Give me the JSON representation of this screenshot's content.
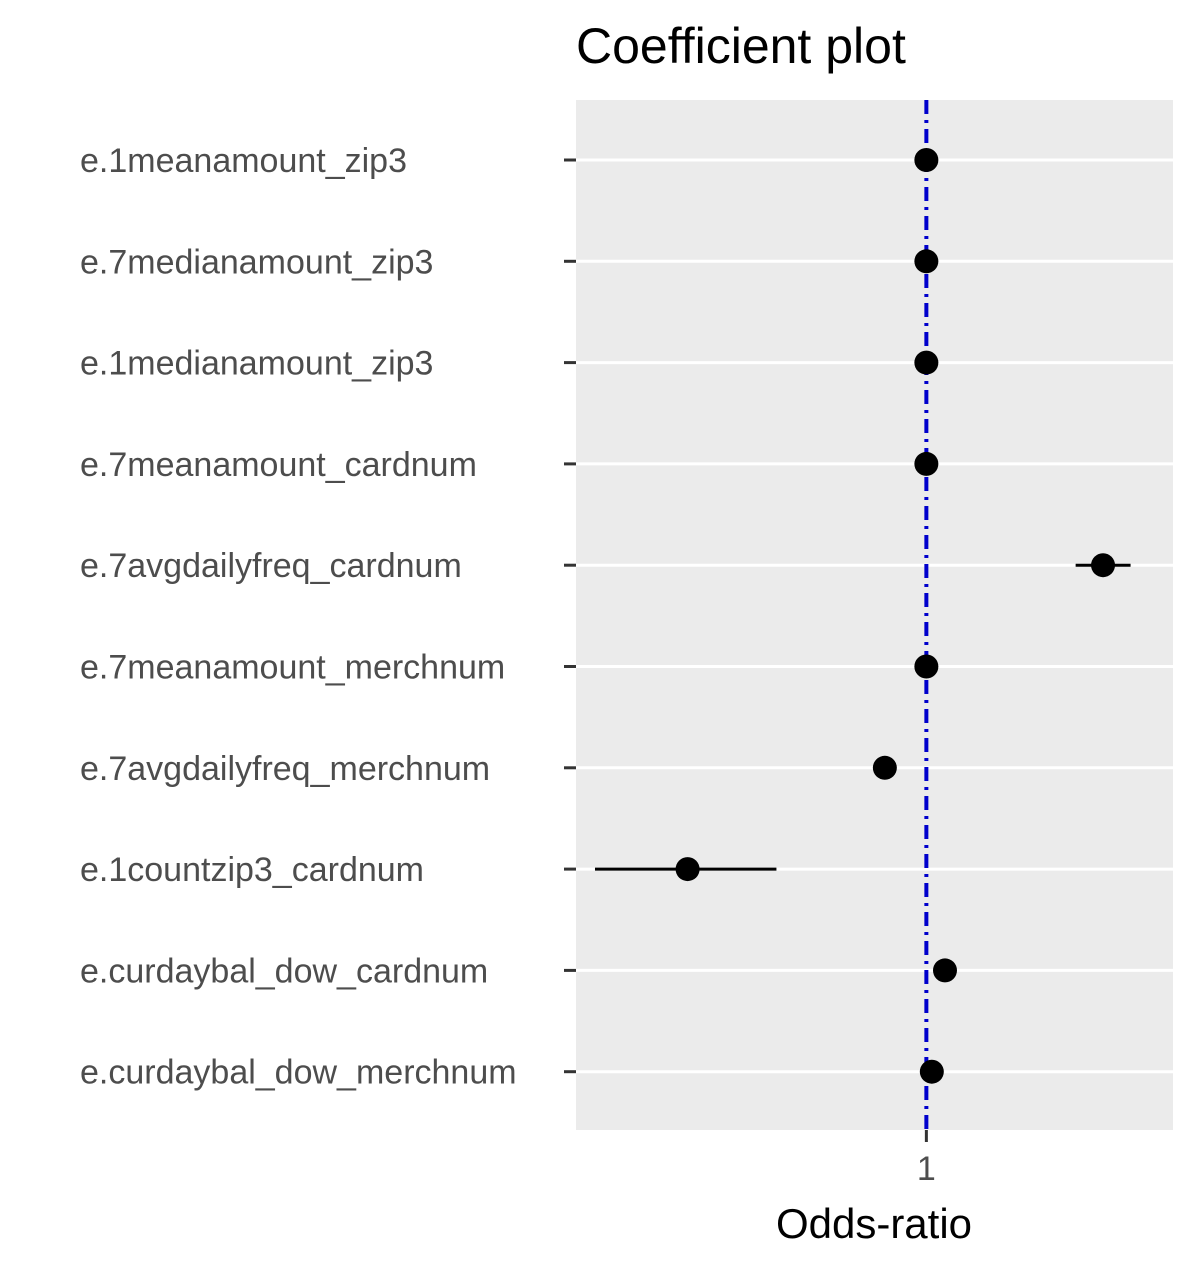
{
  "chart_data": {
    "type": "scatter",
    "title": "Coefficient plot",
    "xlabel": "Odds-ratio",
    "ylabel": "",
    "x_scale": "log",
    "x_ticks": [
      1
    ],
    "x_tick_labels": [
      "1"
    ],
    "reference_line": {
      "x": 1,
      "color": "#0000cc",
      "style": "dot-dash"
    },
    "grid": true,
    "panel_background": "#ebebeb",
    "point_color": "#000000",
    "terms": [
      "e.1meanamount_zip3",
      "e.7medianamount_zip3",
      "e.1medianamount_zip3",
      "e.7meanamount_cardnum",
      "e.7avgdailyfreq_cardnum",
      "e.7meanamount_merchnum",
      "e.7avgdailyfreq_merchnum",
      "e.1countzip3_cardnum",
      "e.curdaybal_dow_cardnum",
      "e.curdaybal_dow_merchnum"
    ],
    "estimates": [
      1.0,
      1.0,
      1.0,
      1.0,
      1.9,
      1.0,
      0.86,
      0.42,
      1.07,
      1.02
    ],
    "conf_low": [
      1.0,
      1.0,
      1.0,
      1.0,
      1.72,
      1.0,
      0.86,
      0.3,
      1.07,
      1.02
    ],
    "conf_high": [
      1.0,
      1.0,
      1.0,
      1.0,
      2.1,
      1.0,
      0.86,
      0.58,
      1.07,
      1.02
    ],
    "xlim": [
      0.28,
      2.45
    ]
  }
}
